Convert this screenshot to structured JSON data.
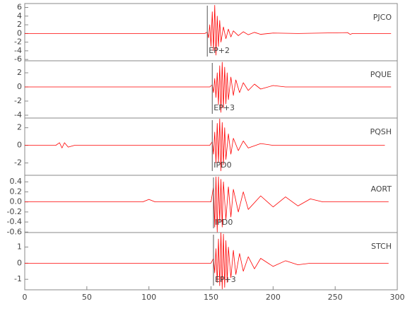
{
  "chart_data": [
    {
      "type": "line",
      "station": "PJCO",
      "annotation": {
        "text": "EP+2",
        "x": 147
      },
      "xlim": [
        0,
        300
      ],
      "ylim": [
        -6.3,
        6.9
      ],
      "yticks": [
        -6,
        -4,
        -2,
        0,
        2,
        4,
        6
      ],
      "series": [
        {
          "color": "#ff0000",
          "x": [
            0,
            145,
            147,
            148,
            149,
            150,
            151,
            152,
            153,
            154,
            155,
            156,
            157,
            158,
            160,
            162,
            164,
            166,
            168,
            172,
            176,
            180,
            185,
            190,
            200,
            220,
            260,
            262,
            264,
            295
          ],
          "values": [
            0,
            0,
            0.3,
            -1,
            2,
            -3,
            5,
            -4,
            6.5,
            -5,
            4,
            -3,
            3,
            -2,
            1.5,
            -1.2,
            1,
            -0.8,
            0.6,
            -0.5,
            0.4,
            -0.3,
            0.25,
            -0.2,
            0.1,
            0,
            0.2,
            -0.2,
            0,
            0
          ]
        }
      ]
    },
    {
      "type": "line",
      "station": "PQUE",
      "annotation": {
        "text": "EP+3",
        "x": 151
      },
      "xlim": [
        0,
        300
      ],
      "ylim": [
        -4.4,
        3.7
      ],
      "yticks": [
        -4,
        -2,
        0,
        2
      ],
      "series": [
        {
          "color": "#ff0000",
          "x": [
            0,
            149,
            151,
            152,
            153,
            154,
            155,
            156,
            157,
            158,
            159,
            160,
            161,
            162,
            163,
            164,
            166,
            168,
            170,
            173,
            176,
            180,
            185,
            190,
            200,
            210,
            295
          ],
          "values": [
            0,
            0,
            0.3,
            -0.8,
            1.2,
            -1.5,
            2,
            -2.5,
            3,
            -3.6,
            3.5,
            -3,
            2.8,
            -2.4,
            2,
            -1.8,
            1.4,
            -1.2,
            1,
            -0.8,
            0.6,
            -0.5,
            0.4,
            -0.3,
            0.2,
            0,
            0
          ]
        }
      ]
    },
    {
      "type": "line",
      "station": "PQSH",
      "annotation": {
        "text": "IPD0",
        "x": 151
      },
      "xlim": [
        0,
        300
      ],
      "ylim": [
        -3.4,
        3.1
      ],
      "yticks": [
        -2,
        0,
        2
      ],
      "series": [
        {
          "color": "#ff0000",
          "x": [
            0,
            25,
            28,
            30,
            32,
            35,
            40,
            149,
            151,
            152,
            153,
            154,
            155,
            156,
            157,
            158,
            159,
            160,
            161,
            162,
            164,
            166,
            168,
            172,
            176,
            180,
            190,
            200,
            290
          ],
          "values": [
            0,
            0,
            0.3,
            -0.3,
            0.3,
            -0.2,
            0,
            0,
            0.4,
            -1,
            1.5,
            -2,
            2.5,
            -2,
            3,
            -2.9,
            2.6,
            -2.2,
            2,
            -1.6,
            1.3,
            -1,
            0.8,
            -0.6,
            0.5,
            -0.3,
            0.2,
            0,
            0
          ]
        }
      ]
    },
    {
      "type": "line",
      "station": "AORT",
      "annotation": {
        "text": "IPD0",
        "x": 152
      },
      "xlim": [
        0,
        300
      ],
      "ylim": [
        -0.61,
        0.53
      ],
      "yticks": [
        -0.6,
        -0.4,
        -0.2,
        {
          "value": 0,
          "label": "0.0"
        },
        0.2,
        0.4
      ],
      "series": [
        {
          "color": "#ff0000",
          "x": [
            0,
            95,
            100,
            105,
            150,
            152,
            153,
            154,
            155,
            156,
            157,
            158,
            159,
            160,
            162,
            164,
            166,
            168,
            172,
            176,
            180,
            190,
            200,
            210,
            220,
            230,
            240,
            250,
            293
          ],
          "values": [
            0,
            0,
            0.05,
            0,
            0,
            0.3,
            -0.5,
            0.5,
            -0.6,
            0.5,
            -0.4,
            0.45,
            -0.5,
            0.4,
            -0.35,
            0.3,
            -0.3,
            0.25,
            -0.2,
            0.2,
            -0.15,
            0.12,
            -0.1,
            0.1,
            -0.08,
            0.06,
            0,
            0,
            0
          ]
        }
      ]
    },
    {
      "type": "line",
      "station": "STCH",
      "annotation": {
        "text": "EP+3",
        "x": 152
      },
      "xlim": [
        0,
        300
      ],
      "ylim": [
        -1.65,
        1.9
      ],
      "yticks": [
        -1,
        0,
        1
      ],
      "xticks": [
        0,
        50,
        100,
        150,
        200,
        250,
        300
      ],
      "series": [
        {
          "color": "#ff0000",
          "x": [
            0,
            150,
            152,
            153,
            154,
            155,
            156,
            157,
            158,
            159,
            160,
            161,
            162,
            163,
            164,
            166,
            168,
            170,
            173,
            176,
            180,
            185,
            190,
            200,
            210,
            220,
            230,
            293
          ],
          "values": [
            0,
            0,
            0.3,
            -0.6,
            0.9,
            -1.2,
            1.5,
            -1.4,
            1.9,
            -1.6,
            1.8,
            -1.5,
            1.4,
            -1.2,
            1,
            -0.9,
            0.8,
            -0.7,
            0.6,
            -0.5,
            0.4,
            -0.35,
            0.3,
            -0.2,
            0.15,
            -0.1,
            0,
            0
          ]
        }
      ]
    }
  ]
}
